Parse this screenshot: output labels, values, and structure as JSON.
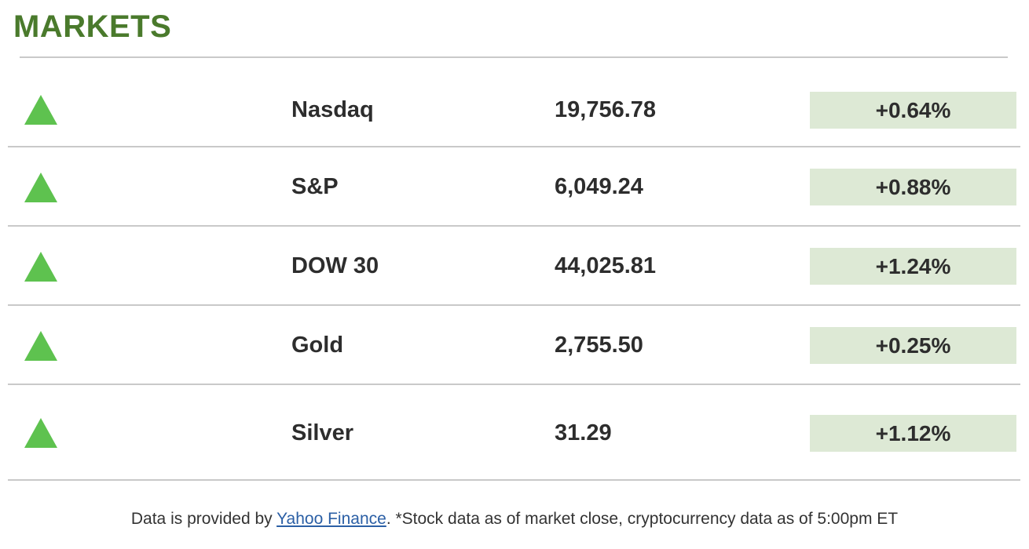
{
  "title": "MARKETS",
  "rows": [
    {
      "name": "Nasdaq",
      "value": "19,756.78",
      "change": "+0.64%",
      "trend": "up"
    },
    {
      "name": "S&P",
      "value": "6,049.24",
      "change": "+0.88%",
      "trend": "up"
    },
    {
      "name": "DOW 30",
      "value": "44,025.81",
      "change": "+1.24%",
      "trend": "up"
    },
    {
      "name": "Gold",
      "value": "2,755.50",
      "change": "+0.25%",
      "trend": "up"
    },
    {
      "name": "Silver",
      "value": "31.29",
      "change": "+1.12%",
      "trend": "up"
    }
  ],
  "footer": {
    "prefix": "Data is provided by ",
    "link_text": "Yahoo Finance",
    "suffix": ". *Stock data as of market close, cryptocurrency data as of 5:00pm ET"
  },
  "icons": {
    "up_triangle": "up-triangle-icon"
  },
  "colors": {
    "title_green": "#4a7a2c",
    "triangle_green": "#5ec24f",
    "badge_background": "#dde9d5",
    "row_text": "#2d2d2d",
    "divider_gray": "#c9c9c9",
    "link_blue": "#2b5fa5",
    "footer_text": "#333333"
  }
}
